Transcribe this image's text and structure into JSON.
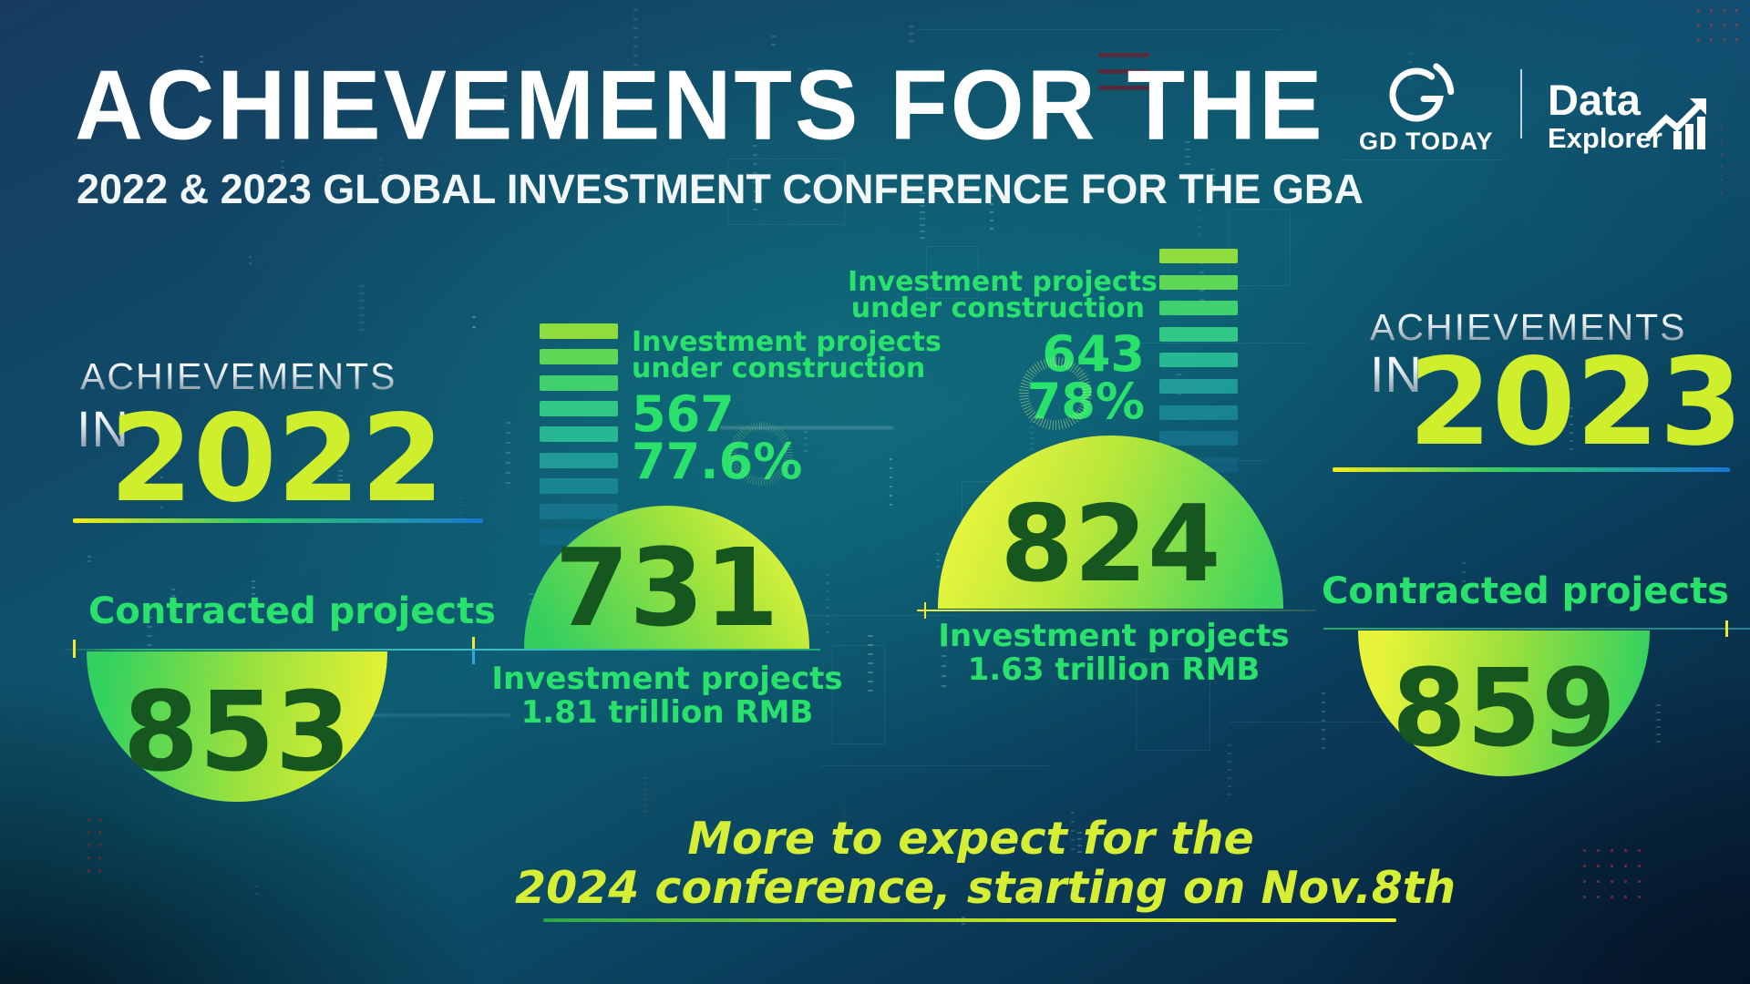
{
  "header": {
    "title": "ACHIEVEMENTS FOR THE",
    "subtitle": "2022 & 2023 GLOBAL INVESTMENT CONFERENCE FOR THE GBA"
  },
  "brand": {
    "gd_today": "GD TODAY",
    "data_word": "Data",
    "explorer_word": "Explorer",
    "g_icon": "gd-today-logo",
    "chart_icon": "rising-chart-arrow"
  },
  "left": {
    "kicker": "ACHIEVEMENTS",
    "in_word": "IN",
    "year": "2022",
    "contracted_label": "Contracted projects",
    "contracted_value": "853",
    "uc_label1": "Investment projects",
    "uc_label2": "under construction",
    "uc_count": "567",
    "uc_percent": "77.6%",
    "inv_value": "731",
    "inv_label1": "Investment projects",
    "inv_label2": "1.81 trillion RMB"
  },
  "right": {
    "kicker": "ACHIEVEMENTS",
    "in_word": "IN",
    "year": "2023",
    "uc_label1": "Investment projects",
    "uc_label2": "under construction",
    "uc_count": "643",
    "uc_percent": "78%",
    "inv_value": "824",
    "inv_label1": "Investment projects",
    "inv_label2": "1.63 trillion RMB",
    "contracted_label": "Contracted projects",
    "contracted_value": "859"
  },
  "footer": {
    "line1": "More to expect for the",
    "line2": "2024 conference, starting on Nov.8th"
  },
  "colors": {
    "accent_green": "#29e26c",
    "year_yellow": "#cfee2c",
    "dome_number_green": "#16571f",
    "footer_yellow": "#d6ef35",
    "silver": "#c2ced8",
    "underline_yellow": "#f7ec13",
    "underline_blue": "#1976d2"
  },
  "decor": {
    "left_bars": 11,
    "right_bars": 10,
    "bar_colors": [
      "#8fdd3c",
      "#5ed656",
      "#40d16e",
      "#30c787",
      "#28b795",
      "#23a59d",
      "#1e93a0",
      "#19809b",
      "#156b90",
      "#115a83",
      "#0e4a74"
    ]
  },
  "chart_data": {
    "type": "table",
    "title": "Achievements for the 2022 & 2023 Global Investment Conference for the GBA",
    "groups": [
      {
        "year": "2022",
        "contracted_projects": 853,
        "investment_projects_count": 731,
        "investment_projects_value": "1.81 trillion RMB",
        "under_construction_count": 567,
        "under_construction_percent": "77.6%"
      },
      {
        "year": "2023",
        "contracted_projects": 859,
        "investment_projects_count": 824,
        "investment_projects_value": "1.63 trillion RMB",
        "under_construction_count": 643,
        "under_construction_percent": "78%"
      }
    ],
    "footnote": "More to expect for the 2024 conference, starting on Nov.8th"
  }
}
